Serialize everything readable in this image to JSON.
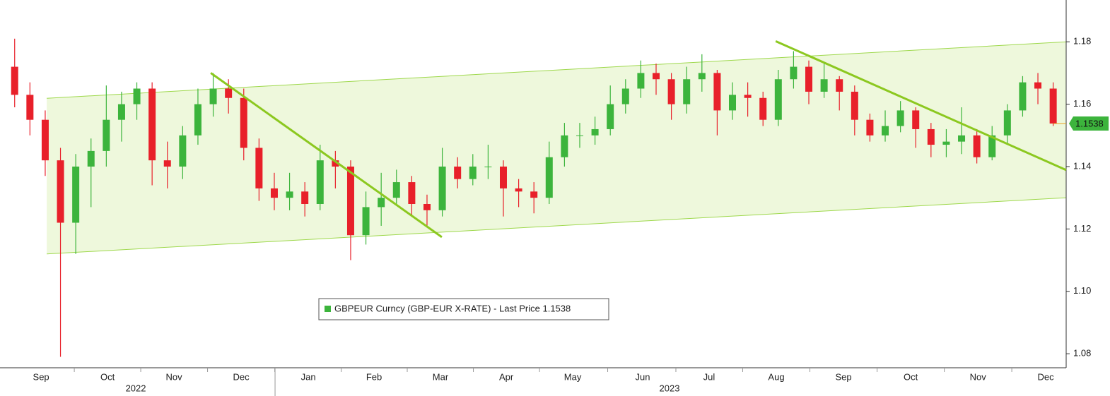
{
  "chart_data": {
    "type": "candlestick",
    "legend": "GBPEUR Curncy (GBP-EUR X-RATE) - Last Price 1.1538",
    "up_color": "#3cb43c",
    "down_color": "#e8202a",
    "x": [
      0,
      1,
      2,
      3,
      4,
      5,
      6,
      7,
      8,
      9,
      10,
      11,
      12,
      13,
      14,
      15,
      16,
      17,
      18,
      19,
      20,
      21,
      22,
      23,
      24,
      25,
      26,
      27,
      28,
      29,
      30,
      31,
      32,
      33,
      34,
      35,
      36,
      37,
      38,
      39,
      40,
      41,
      42,
      43,
      44,
      45,
      46,
      47,
      48,
      49,
      50,
      51,
      52,
      53,
      54,
      55,
      56,
      57,
      58,
      59,
      60,
      61,
      62,
      63,
      64,
      65,
      66,
      67,
      68
    ],
    "open": [
      1.172,
      1.163,
      1.155,
      1.142,
      1.122,
      1.14,
      1.145,
      1.155,
      1.16,
      1.165,
      1.142,
      1.14,
      1.15,
      1.16,
      1.165,
      1.162,
      1.146,
      1.133,
      1.13,
      1.132,
      1.128,
      1.142,
      1.14,
      1.118,
      1.127,
      1.13,
      1.135,
      1.128,
      1.126,
      1.14,
      1.136,
      1.14,
      1.14,
      1.133,
      1.132,
      1.13,
      1.143,
      1.15,
      1.15,
      1.152,
      1.16,
      1.165,
      1.17,
      1.168,
      1.16,
      1.168,
      1.17,
      1.158,
      1.163,
      1.162,
      1.155,
      1.168,
      1.172,
      1.164,
      1.168,
      1.164,
      1.155,
      1.15,
      1.153,
      1.158,
      1.152,
      1.147,
      1.148,
      1.15,
      1.143,
      1.15,
      1.158,
      1.167,
      1.165
    ],
    "high": [
      1.181,
      1.167,
      1.158,
      1.146,
      1.144,
      1.149,
      1.166,
      1.164,
      1.167,
      1.167,
      1.148,
      1.153,
      1.165,
      1.17,
      1.168,
      1.165,
      1.149,
      1.138,
      1.138,
      1.135,
      1.147,
      1.145,
      1.142,
      1.132,
      1.138,
      1.139,
      1.137,
      1.131,
      1.146,
      1.143,
      1.144,
      1.147,
      1.142,
      1.136,
      1.135,
      1.148,
      1.154,
      1.154,
      1.156,
      1.166,
      1.168,
      1.174,
      1.173,
      1.17,
      1.172,
      1.176,
      1.171,
      1.167,
      1.167,
      1.164,
      1.171,
      1.177,
      1.174,
      1.173,
      1.169,
      1.166,
      1.157,
      1.158,
      1.161,
      1.159,
      1.154,
      1.152,
      1.159,
      1.152,
      1.153,
      1.16,
      1.169,
      1.17,
      1.167
    ],
    "low": [
      1.159,
      1.15,
      1.137,
      1.079,
      1.112,
      1.127,
      1.14,
      1.148,
      1.155,
      1.134,
      1.133,
      1.136,
      1.147,
      1.156,
      1.157,
      1.142,
      1.129,
      1.126,
      1.126,
      1.124,
      1.126,
      1.133,
      1.11,
      1.115,
      1.121,
      1.128,
      1.124,
      1.121,
      1.124,
      1.133,
      1.134,
      1.136,
      1.124,
      1.127,
      1.125,
      1.128,
      1.14,
      1.146,
      1.147,
      1.15,
      1.157,
      1.162,
      1.163,
      1.155,
      1.157,
      1.164,
      1.15,
      1.155,
      1.156,
      1.153,
      1.153,
      1.165,
      1.16,
      1.162,
      1.158,
      1.15,
      1.148,
      1.148,
      1.151,
      1.146,
      1.143,
      1.143,
      1.144,
      1.141,
      1.142,
      1.147,
      1.156,
      1.16,
      1.153
    ],
    "close": [
      1.163,
      1.155,
      1.142,
      1.122,
      1.14,
      1.145,
      1.155,
      1.16,
      1.165,
      1.142,
      1.14,
      1.15,
      1.16,
      1.165,
      1.162,
      1.146,
      1.133,
      1.13,
      1.132,
      1.128,
      1.142,
      1.14,
      1.118,
      1.127,
      1.13,
      1.135,
      1.128,
      1.126,
      1.14,
      1.136,
      1.14,
      1.14,
      1.133,
      1.132,
      1.13,
      1.143,
      1.15,
      1.15,
      1.152,
      1.16,
      1.165,
      1.17,
      1.168,
      1.16,
      1.168,
      1.17,
      1.158,
      1.163,
      1.162,
      1.155,
      1.168,
      1.172,
      1.164,
      1.168,
      1.164,
      1.155,
      1.15,
      1.153,
      1.158,
      1.152,
      1.147,
      1.148,
      1.15,
      1.143,
      1.15,
      1.158,
      1.167,
      1.165,
      1.1538
    ],
    "last_price": 1.1538,
    "xlim": [
      -0.96,
      68.85
    ],
    "ylim": [
      1.0755,
      1.1934
    ],
    "yticks": [
      1.08,
      {
        "value": 1.1,
        "label": "1.10"
      },
      1.12,
      1.14,
      1.16,
      1.18
    ],
    "xticks": [
      {
        "value": 1.73,
        "label": "Sep"
      },
      {
        "value": 6.08,
        "label": "Oct"
      },
      {
        "value": 10.43,
        "label": "Nov"
      },
      {
        "value": 14.83,
        "label": "Dec"
      },
      {
        "value": 19.23,
        "label": "Jan"
      },
      {
        "value": 23.53,
        "label": "Feb"
      },
      {
        "value": 27.88,
        "label": "Mar"
      },
      {
        "value": 32.19,
        "label": "Apr"
      },
      {
        "value": 36.54,
        "label": "May"
      },
      {
        "value": 41.12,
        "label": "Jun"
      },
      {
        "value": 45.47,
        "label": "Jul"
      },
      {
        "value": 49.87,
        "label": "Aug"
      },
      {
        "value": 54.27,
        "label": "Sep"
      },
      {
        "value": 58.67,
        "label": "Oct"
      },
      {
        "value": 63.07,
        "label": "Nov"
      },
      {
        "value": 67.51,
        "label": "Dec"
      }
    ],
    "years": [
      {
        "value": 7.93,
        "label": "2022"
      },
      {
        "value": 42.88,
        "label": "2023"
      }
    ],
    "year_break": 17.05,
    "channel": {
      "color": "#eef8dc",
      "line_color": "#9ed84c",
      "x": [
        2.1,
        68.85
      ],
      "upper": [
        1.1619,
        1.18
      ],
      "lower": [
        1.112,
        1.13
      ]
    },
    "trendlines": [
      {
        "color": "#8cc820",
        "x": [
          12.84,
          27.97
        ],
        "y": [
          1.17,
          1.1174
        ]
      },
      {
        "color": "#8cc820",
        "x": [
          49.83,
          68.85
        ],
        "y": [
          1.1802,
          1.1389
        ]
      }
    ]
  }
}
